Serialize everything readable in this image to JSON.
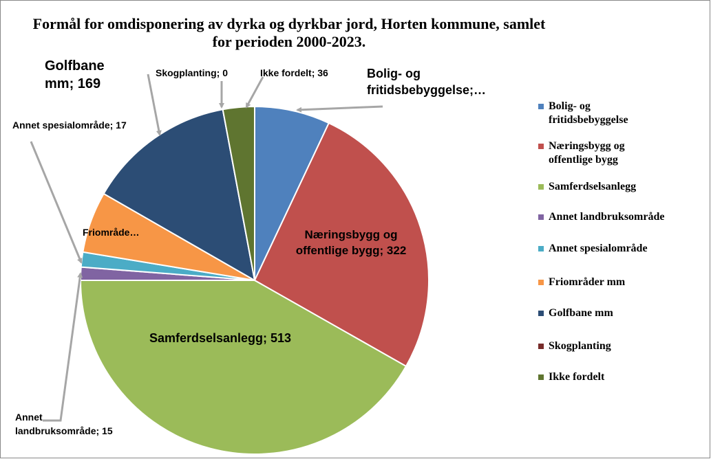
{
  "chart_data": {
    "type": "pie",
    "title": "Formål for omdisponering av dyrka og dyrkbar jord, Horten kommune, samlet for perioden 2000-2023.",
    "categories": [
      "Bolig- og fritidsbebyggelse",
      "Næringsbygg og offentlige bygg",
      "Samferdselsanlegg",
      "Annet landbruksområde",
      "Annet spesialområde",
      "Friområder mm",
      "Golfbane mm",
      "Skogplanting",
      "Ikke fordelt"
    ],
    "values": [
      86,
      322,
      513,
      15,
      17,
      70,
      169,
      0,
      36
    ],
    "value_labels": [
      "Bolig- og fritidsbebyggelse;…",
      "Næringsbygg og offentlige bygg; 322",
      "Samferdselsanlegg; 513",
      "Annet landbruksområde; 15",
      "Annet spesialområde; 17",
      "Friområde…",
      "Golfbane mm; 169",
      "Skogplanting; 0",
      "Ikke fordelt; 36"
    ],
    "colors": [
      "#4f81bd",
      "#c0504d",
      "#9bbb59",
      "#8064a2",
      "#4bacc6",
      "#f79646",
      "#2c4d75",
      "#772c2a",
      "#5f7530"
    ],
    "legend": "right"
  }
}
